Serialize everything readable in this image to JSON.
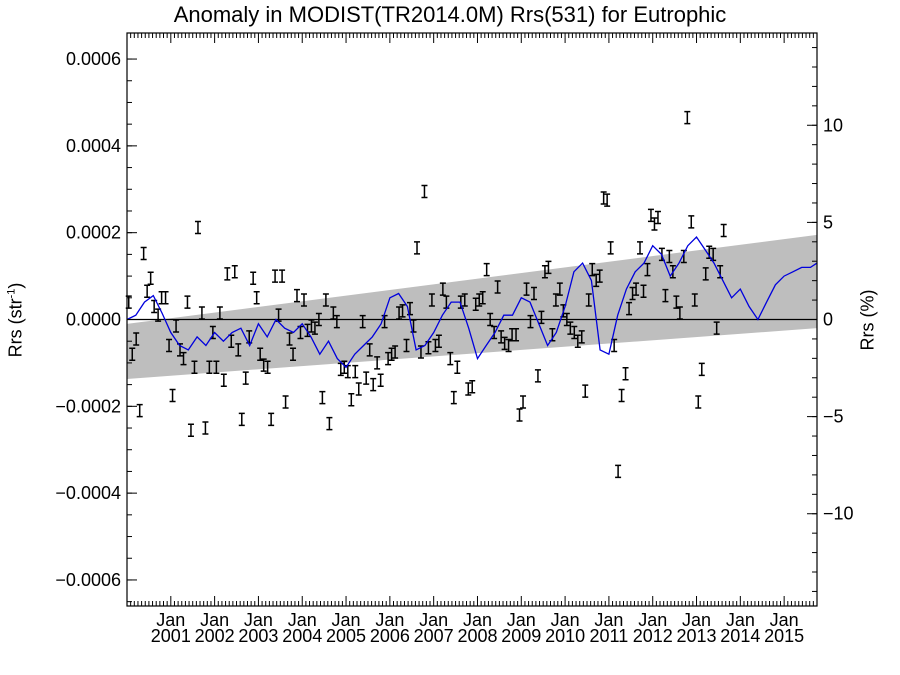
{
  "chart_data": {
    "type": "scatter",
    "title": "Anomaly in MODIST(TR2014.0M) Rrs(531) for Eutrophic",
    "ylabel_left_prefix": "Rrs (str",
    "ylabel_left_sup": "-1",
    "ylabel_left_suffix": ")",
    "ylabel_right": "Rrs (%)",
    "x_unit": "year",
    "xlim": [
      2000.0,
      2015.75
    ],
    "ylim": [
      -0.00066,
      0.00066
    ],
    "y2lim": [
      -14.75,
      14.75
    ],
    "y_ticks": [
      -0.0006,
      -0.0004,
      -0.0002,
      0.0,
      0.0002,
      0.0004,
      0.0006
    ],
    "y_tick_labels": [
      "−0.0006",
      "−0.0004",
      "−0.0002",
      "0.0000",
      "0.0002",
      "0.0004",
      "0.0006"
    ],
    "y2_ticks": [
      -10,
      -5,
      0,
      5,
      10
    ],
    "y2_tick_labels": [
      "−10",
      "−5",
      "0",
      "5",
      "10"
    ],
    "x_ticks": [
      2001,
      2002,
      2003,
      2004,
      2005,
      2006,
      2007,
      2008,
      2009,
      2010,
      2011,
      2012,
      2013,
      2014,
      2015
    ],
    "x_tick_month": "Jan",
    "x_tick_years": [
      "2001",
      "2002",
      "2003",
      "2004",
      "2005",
      "2006",
      "2007",
      "2008",
      "2009",
      "2010",
      "2011",
      "2012",
      "2013",
      "2014",
      "2015"
    ],
    "trend_band": {
      "x": [
        2000.0,
        2015.75
      ],
      "upper": [
        -1e-05,
        0.000195
      ],
      "lower": [
        -0.000137,
        -2e-05
      ]
    },
    "zero_line": 0.0,
    "grid": false,
    "legend": "none",
    "colors": {
      "points": "#000000",
      "smooth_line": "#0000dd",
      "band": "#bebebe",
      "zero_line": "#000000"
    },
    "points": [
      [
        2000.04,
        4e-05
      ],
      [
        2000.12,
        -8e-05
      ],
      [
        2000.21,
        -4.5e-05
      ],
      [
        2000.29,
        -0.00021
      ],
      [
        2000.38,
        0.000152
      ],
      [
        2000.46,
        6.5e-05
      ],
      [
        2000.54,
        9.5e-05
      ],
      [
        2000.62,
        3e-05
      ],
      [
        2000.71,
        1e-05
      ],
      [
        2000.79,
        5e-05
      ],
      [
        2000.88,
        5e-05
      ],
      [
        2000.96,
        -6e-05
      ],
      [
        2001.04,
        -0.000175
      ],
      [
        2001.12,
        -1.5e-05
      ],
      [
        2001.21,
        -7e-05
      ],
      [
        2001.29,
        -9e-05
      ],
      [
        2001.38,
        4e-05
      ],
      [
        2001.46,
        -0.000255
      ],
      [
        2001.54,
        -0.00011
      ],
      [
        2001.62,
        0.000212
      ],
      [
        2001.71,
        1.5e-05
      ],
      [
        2001.79,
        -0.00025
      ],
      [
        2001.88,
        -0.00011
      ],
      [
        2001.96,
        -3e-05
      ],
      [
        2002.04,
        -0.00011
      ],
      [
        2002.12,
        1.5e-05
      ],
      [
        2002.21,
        -0.00014
      ],
      [
        2002.29,
        0.000105
      ],
      [
        2002.38,
        -5e-05
      ],
      [
        2002.46,
        0.00011
      ],
      [
        2002.54,
        -7e-05
      ],
      [
        2002.62,
        -0.00023
      ],
      [
        2002.71,
        -0.000135
      ],
      [
        2002.79,
        -4e-05
      ],
      [
        2002.88,
        9.5e-05
      ],
      [
        2002.96,
        5e-05
      ],
      [
        2003.04,
        -8e-05
      ],
      [
        2003.12,
        -0.000105
      ],
      [
        2003.21,
        -0.00011
      ],
      [
        2003.29,
        -0.00023
      ],
      [
        2003.38,
        0.0001
      ],
      [
        2003.46,
        1e-05
      ],
      [
        2003.54,
        0.0001
      ],
      [
        2003.62,
        -0.00019
      ],
      [
        2003.71,
        -4.5e-05
      ],
      [
        2003.79,
        -8e-05
      ],
      [
        2003.88,
        5.5e-05
      ],
      [
        2003.96,
        -3e-05
      ],
      [
        2004.04,
        4.5e-05
      ],
      [
        2004.12,
        -2.5e-05
      ],
      [
        2004.21,
        -1.5e-05
      ],
      [
        2004.29,
        -2e-05
      ],
      [
        2004.38,
        0.0
      ],
      [
        2004.46,
        -0.00018
      ],
      [
        2004.54,
        4.5e-05
      ],
      [
        2004.62,
        -0.00024
      ],
      [
        2004.71,
        1.5e-05
      ],
      [
        2004.79,
        -5e-06
      ],
      [
        2004.88,
        -0.000115
      ],
      [
        2004.96,
        -0.00011
      ],
      [
        2005.04,
        -0.00012
      ],
      [
        2005.12,
        -0.000185
      ],
      [
        2005.21,
        -0.00012
      ],
      [
        2005.29,
        -0.00016
      ],
      [
        2005.38,
        -5e-06
      ],
      [
        2005.46,
        -0.000135
      ],
      [
        2005.54,
        -7e-05
      ],
      [
        2005.62,
        -0.00015
      ],
      [
        2005.71,
        -0.0001
      ],
      [
        2005.79,
        -0.00014
      ],
      [
        2005.88,
        -5e-06
      ],
      [
        2005.96,
        -9e-05
      ],
      [
        2006.04,
        -8e-05
      ],
      [
        2006.12,
        -7.5e-05
      ],
      [
        2006.21,
        1.5e-05
      ],
      [
        2006.29,
        2e-05
      ],
      [
        2006.38,
        -6e-05
      ],
      [
        2006.46,
        2.5e-05
      ],
      [
        2006.54,
        -1.5e-05
      ],
      [
        2006.62,
        0.000165
      ],
      [
        2006.71,
        -7.5e-05
      ],
      [
        2006.79,
        0.000295
      ],
      [
        2006.88,
        -6.5e-05
      ],
      [
        2006.96,
        4.5e-05
      ],
      [
        2007.04,
        -6e-05
      ],
      [
        2007.12,
        -5e-05
      ],
      [
        2007.21,
        7e-05
      ],
      [
        2007.29,
        4e-05
      ],
      [
        2007.38,
        -9e-05
      ],
      [
        2007.46,
        -0.00018
      ],
      [
        2007.54,
        -0.00011
      ],
      [
        2007.62,
        4e-05
      ],
      [
        2007.71,
        4.5e-05
      ],
      [
        2007.79,
        -0.00016
      ],
      [
        2007.88,
        -0.000155
      ],
      [
        2007.96,
        3.5e-05
      ],
      [
        2008.04,
        4.5e-05
      ],
      [
        2008.12,
        5e-05
      ],
      [
        2008.21,
        0.000115
      ],
      [
        2008.29,
        0.0
      ],
      [
        2008.38,
        -3e-05
      ],
      [
        2008.46,
        7.5e-05
      ],
      [
        2008.54,
        -4e-05
      ],
      [
        2008.62,
        -5.5e-05
      ],
      [
        2008.71,
        -6e-05
      ],
      [
        2008.79,
        -3.5e-05
      ],
      [
        2008.88,
        -3.5e-05
      ],
      [
        2008.96,
        -0.00022
      ],
      [
        2009.04,
        -0.00019
      ],
      [
        2009.12,
        7e-05
      ],
      [
        2009.21,
        -5e-06
      ],
      [
        2009.29,
        6e-05
      ],
      [
        2009.38,
        -0.00013
      ],
      [
        2009.46,
        5e-06
      ],
      [
        2009.54,
        0.00011
      ],
      [
        2009.62,
        0.00012
      ],
      [
        2009.71,
        -3.5e-05
      ],
      [
        2009.79,
        4.5e-05
      ],
      [
        2009.88,
        7e-05
      ],
      [
        2009.96,
        2e-05
      ],
      [
        2010.04,
        0.0
      ],
      [
        2010.12,
        -2e-05
      ],
      [
        2010.21,
        -3e-05
      ],
      [
        2010.29,
        -5e-05
      ],
      [
        2010.38,
        -4e-05
      ],
      [
        2010.46,
        -0.000165
      ],
      [
        2010.54,
        4.5e-05
      ],
      [
        2010.62,
        0.000115
      ],
      [
        2010.71,
        9e-05
      ],
      [
        2010.79,
        0.0001
      ],
      [
        2010.88,
        0.00028
      ],
      [
        2010.96,
        0.000275
      ],
      [
        2011.04,
        0.000165
      ],
      [
        2011.12,
        -6e-05
      ],
      [
        2011.21,
        -0.00035
      ],
      [
        2011.29,
        -0.000175
      ],
      [
        2011.38,
        -0.000125
      ],
      [
        2011.46,
        2.5e-05
      ],
      [
        2011.54,
        6e-05
      ],
      [
        2011.62,
        7e-05
      ],
      [
        2011.71,
        0.000165
      ],
      [
        2011.79,
        6.5e-05
      ],
      [
        2011.88,
        0.000115
      ],
      [
        2011.96,
        0.00024
      ],
      [
        2012.04,
        0.00022
      ],
      [
        2012.12,
        0.000235
      ],
      [
        2012.21,
        0.00015
      ],
      [
        2012.29,
        5.5e-05
      ],
      [
        2012.38,
        0.000145
      ],
      [
        2012.46,
        0.00011
      ],
      [
        2012.54,
        4e-05
      ],
      [
        2012.62,
        1.5e-05
      ],
      [
        2012.71,
        0.000145
      ],
      [
        2012.79,
        0.000465
      ],
      [
        2012.88,
        0.000225
      ],
      [
        2012.96,
        4.5e-05
      ],
      [
        2013.04,
        -0.00019
      ],
      [
        2013.12,
        -0.000115
      ],
      [
        2013.21,
        0.000105
      ],
      [
        2013.29,
        0.000155
      ],
      [
        2013.38,
        0.00015
      ],
      [
        2013.46,
        -2e-05
      ],
      [
        2013.54,
        0.00011
      ],
      [
        2013.62,
        0.000205
      ]
    ],
    "smooth_line": [
      [
        2000.0,
        0.0
      ],
      [
        2000.2,
        1e-05
      ],
      [
        2000.4,
        4e-05
      ],
      [
        2000.6,
        5.5e-05
      ],
      [
        2000.8,
        1.5e-05
      ],
      [
        2001.0,
        -3e-05
      ],
      [
        2001.2,
        -6e-05
      ],
      [
        2001.4,
        -7e-05
      ],
      [
        2001.6,
        -4e-05
      ],
      [
        2001.8,
        -6e-05
      ],
      [
        2002.0,
        -3e-05
      ],
      [
        2002.2,
        -5e-05
      ],
      [
        2002.4,
        -3e-05
      ],
      [
        2002.6,
        -2e-05
      ],
      [
        2002.8,
        -6e-05
      ],
      [
        2003.0,
        -1e-05
      ],
      [
        2003.2,
        -4e-05
      ],
      [
        2003.4,
        0.0
      ],
      [
        2003.6,
        -2e-05
      ],
      [
        2003.8,
        -3e-05
      ],
      [
        2004.0,
        -1e-05
      ],
      [
        2004.2,
        -4e-05
      ],
      [
        2004.4,
        -8e-05
      ],
      [
        2004.6,
        -5e-05
      ],
      [
        2004.8,
        -9e-05
      ],
      [
        2005.0,
        -0.00011
      ],
      [
        2005.2,
        -8e-05
      ],
      [
        2005.4,
        -6e-05
      ],
      [
        2005.6,
        -4e-05
      ],
      [
        2005.8,
        -1e-05
      ],
      [
        2006.0,
        5e-05
      ],
      [
        2006.2,
        6e-05
      ],
      [
        2006.4,
        3e-05
      ],
      [
        2006.6,
        -7e-05
      ],
      [
        2006.8,
        -6e-05
      ],
      [
        2007.0,
        -3e-05
      ],
      [
        2007.2,
        1e-05
      ],
      [
        2007.4,
        4e-05
      ],
      [
        2007.6,
        4e-05
      ],
      [
        2007.8,
        -2e-05
      ],
      [
        2008.0,
        -9e-05
      ],
      [
        2008.2,
        -6e-05
      ],
      [
        2008.4,
        -3e-05
      ],
      [
        2008.6,
        1e-05
      ],
      [
        2008.8,
        1e-05
      ],
      [
        2009.0,
        5e-05
      ],
      [
        2009.2,
        4e-05
      ],
      [
        2009.4,
        -1e-05
      ],
      [
        2009.6,
        -6e-05
      ],
      [
        2009.8,
        -3e-05
      ],
      [
        2010.0,
        3e-05
      ],
      [
        2010.2,
        0.00011
      ],
      [
        2010.4,
        0.00013
      ],
      [
        2010.6,
        9e-05
      ],
      [
        2010.8,
        -7e-05
      ],
      [
        2011.0,
        -8e-05
      ],
      [
        2011.2,
        1e-05
      ],
      [
        2011.4,
        7e-05
      ],
      [
        2011.6,
        0.00011
      ],
      [
        2011.8,
        0.00013
      ],
      [
        2012.0,
        0.00017
      ],
      [
        2012.2,
        0.00015
      ],
      [
        2012.4,
        0.0001
      ],
      [
        2012.6,
        0.00013
      ],
      [
        2012.8,
        0.00017
      ],
      [
        2013.0,
        0.00019
      ],
      [
        2013.2,
        0.00016
      ],
      [
        2013.4,
        0.00013
      ],
      [
        2013.6,
        9e-05
      ],
      [
        2013.8,
        5e-05
      ],
      [
        2014.0,
        7e-05
      ],
      [
        2014.2,
        3e-05
      ],
      [
        2014.4,
        0.0
      ],
      [
        2014.6,
        4e-05
      ],
      [
        2014.8,
        8e-05
      ],
      [
        2015.0,
        0.0001
      ],
      [
        2015.2,
        0.00011
      ],
      [
        2015.4,
        0.00012
      ],
      [
        2015.6,
        0.00012
      ],
      [
        2015.75,
        0.00013
      ]
    ]
  }
}
